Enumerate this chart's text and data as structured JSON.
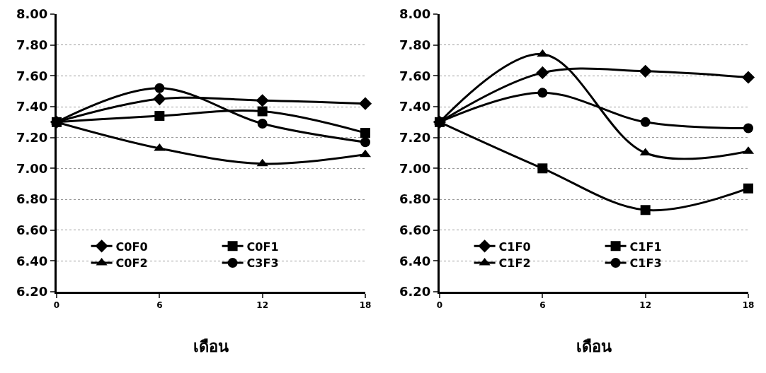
{
  "chart_data": [
    {
      "type": "line",
      "xlabel": "เดือน",
      "x": [
        0,
        6,
        12,
        18
      ],
      "xlim": [
        0,
        18
      ],
      "xticks": [
        0,
        6,
        12,
        18
      ],
      "ylim": [
        6.2,
        8.0
      ],
      "yticks": [
        {
          "value": 6.2,
          "label": "6.20"
        },
        {
          "value": 6.4,
          "label": "6.40"
        },
        {
          "value": 6.6,
          "label": "6.60"
        },
        {
          "value": 6.8,
          "label": "6.80"
        },
        {
          "value": 7.0,
          "label": "7.00"
        },
        {
          "value": 7.2,
          "label": "7.20"
        },
        {
          "value": 7.4,
          "label": "7.40"
        },
        {
          "value": 7.6,
          "label": "7.60"
        },
        {
          "value": 7.8,
          "label": "7.80"
        },
        {
          "value": 8.0,
          "label": "8.00"
        }
      ],
      "grid": "y",
      "legend": "bottom",
      "line_style": "solid",
      "series": [
        {
          "name": "C0F0",
          "color": "#000000",
          "marker": "diamond",
          "values": [
            7.3,
            7.45,
            7.44,
            7.42
          ]
        },
        {
          "name": "C0F1",
          "color": "#000000",
          "marker": "square",
          "values": [
            7.3,
            7.34,
            7.37,
            7.23
          ]
        },
        {
          "name": "C0F2",
          "color": "#000000",
          "marker": "triangle",
          "values": [
            7.3,
            7.13,
            7.03,
            7.09
          ]
        },
        {
          "name": "C3F3",
          "color": "#000000",
          "marker": "circle",
          "values": [
            7.3,
            7.52,
            7.29,
            7.17
          ]
        }
      ]
    },
    {
      "type": "line",
      "xlabel": "เดือน",
      "x": [
        0,
        6,
        12,
        18
      ],
      "xlim": [
        0,
        18
      ],
      "xticks": [
        0,
        6,
        12,
        18
      ],
      "ylim": [
        6.2,
        8.0
      ],
      "yticks": [
        {
          "value": 6.2,
          "label": "6.20"
        },
        {
          "value": 6.4,
          "label": "6.40"
        },
        {
          "value": 6.6,
          "label": "6.60"
        },
        {
          "value": 6.8,
          "label": "6.80"
        },
        {
          "value": 7.0,
          "label": "7.00"
        },
        {
          "value": 7.2,
          "label": "7.20"
        },
        {
          "value": 7.4,
          "label": "7.40"
        },
        {
          "value": 7.6,
          "label": "7.60"
        },
        {
          "value": 7.8,
          "label": "7.80"
        },
        {
          "value": 8.0,
          "label": "8.00"
        }
      ],
      "grid": "y",
      "legend": "bottom",
      "line_style": "solid",
      "series": [
        {
          "name": "C1F0",
          "color": "#000000",
          "marker": "diamond",
          "values": [
            7.3,
            7.62,
            7.63,
            7.59
          ]
        },
        {
          "name": "C1F1",
          "color": "#000000",
          "marker": "square",
          "values": [
            7.3,
            7.0,
            6.73,
            6.87
          ]
        },
        {
          "name": "C1F2",
          "color": "#000000",
          "marker": "triangle",
          "values": [
            7.3,
            7.74,
            7.1,
            7.11
          ]
        },
        {
          "name": "C1F3",
          "color": "#000000",
          "marker": "circle",
          "values": [
            7.3,
            7.49,
            7.3,
            7.26
          ]
        }
      ]
    }
  ]
}
